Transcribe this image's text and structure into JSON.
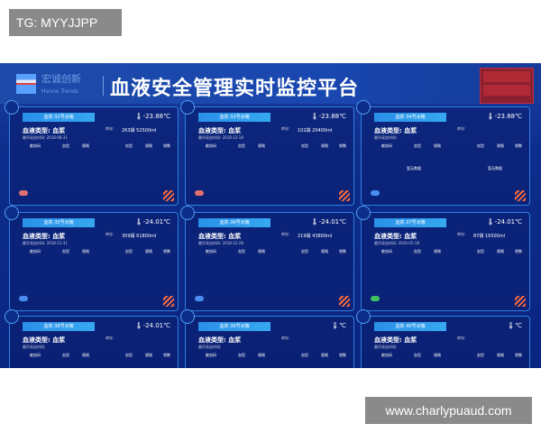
{
  "watermarks": {
    "top_left": "TG: MYYJJPP",
    "bottom_right": "www.charlypuaud.com"
  },
  "header": {
    "brand": "宏诚创新",
    "brand_sub": "Hanno Trends",
    "title": "血液安全管理实时监控平台"
  },
  "colors": {
    "background": "#0d2d8c",
    "header": "#1947b0",
    "card_border": "#2f7fe0",
    "alert": "#b02a35",
    "stripe": "#ff6a3a"
  },
  "columns": {
    "left": [
      "献血码",
      "血型",
      "规格"
    ],
    "right": [
      "血型",
      "规格",
      "袋数"
    ]
  },
  "cards": [
    {
      "name": "血浆-32号冰箱",
      "temp": "-23.88℃",
      "type": "血液类型: 血浆",
      "stock_label": "库存:",
      "total": "263袋 52500ml",
      "date": "最早采血时间: 2018-08-31",
      "btn": "#e07070"
    },
    {
      "name": "血浆-33号冰箱",
      "temp": "-23.88℃",
      "type": "血液类型: 血浆",
      "stock_label": "库存:",
      "total": "102袋 20400ml",
      "date": "最早采血时间: 2018-12-18",
      "btn": "#e07070"
    },
    {
      "name": "血浆-34号冰箱",
      "temp": "-23.88℃",
      "type": "血液类型: 血浆",
      "stock_label": "库存:",
      "total": "",
      "date": "最早采血时间:",
      "btn": "#4a8cf0",
      "empty": "暂无数据"
    },
    {
      "name": "血浆-35号冰箱",
      "temp": "-24.01℃",
      "type": "血液类型: 血浆",
      "stock_label": "库存:",
      "total": "309袋 61800ml",
      "date": "最早采血时间: 2018-12-31",
      "btn": "#4a8cf0"
    },
    {
      "name": "血浆-36号冰箱",
      "temp": "-24.01℃",
      "type": "血液类型: 血浆",
      "stock_label": "库存:",
      "total": "219袋 43800ml",
      "date": "最早采血时间: 2018-12-28",
      "btn": "#4a8cf0"
    },
    {
      "name": "血浆-37号冰箱",
      "temp": "-24.01℃",
      "type": "血液类型: 血浆",
      "stock_label": "库存:",
      "total": "87袋 16500ml",
      "date": "最早采血时间: 2020-05-18",
      "btn": "#3cc060"
    },
    {
      "name": "血浆-38号冰箱",
      "temp": "-24.01℃",
      "type": "血液类型: 血浆",
      "stock_label": "库存:",
      "total": "",
      "date": "最早采血时间:",
      "btn": ""
    },
    {
      "name": "血浆-39号冰箱",
      "temp": "℃",
      "type": "血液类型: 血浆",
      "stock_label": "库存:",
      "total": "",
      "date": "最早采血时间:",
      "btn": ""
    },
    {
      "name": "血浆-40号冰箱",
      "temp": "℃",
      "type": "血液类型: 血浆",
      "stock_label": "库存:",
      "total": "",
      "date": "最早采血时间:",
      "btn": ""
    }
  ]
}
